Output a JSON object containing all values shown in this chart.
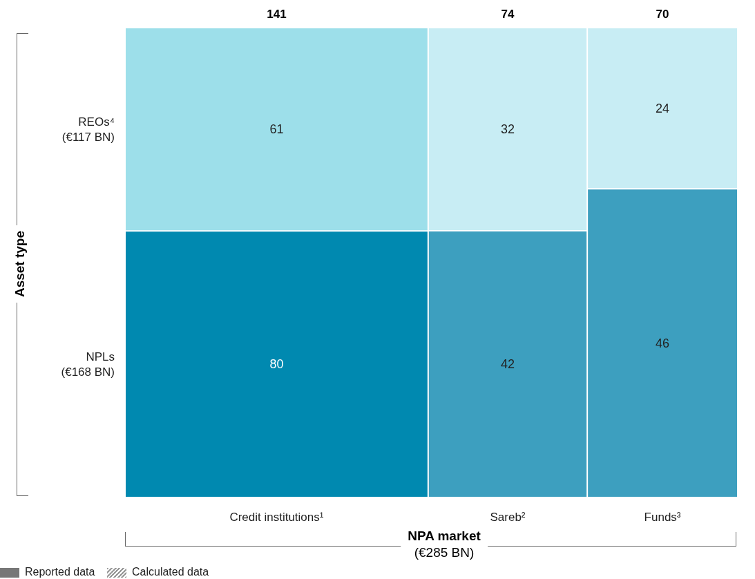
{
  "chart_data": {
    "type": "other",
    "data_labels": true,
    "categories": [
      "Credit institutions¹",
      "Sareb²",
      "Funds³"
    ],
    "series": [
      {
        "name": "NPLs\n(€168 BN)",
        "values": [
          80,
          42,
          46
        ],
        "colors": [
          "#0089b0",
          "#3d9fbf",
          "#3d9fbf"
        ]
      },
      {
        "name": "REOs⁴\n(€117 BN)",
        "values": [
          61,
          32,
          24
        ],
        "colors": [
          "#9ddfea",
          "#c8edf4",
          "#c8edf4"
        ]
      }
    ],
    "totals": [
      "141",
      "74",
      "70"
    ],
    "xlabel": "NPA market\n(€285 BN)",
    "annotations": [
      "Asset type",
      "Reported data",
      "Calculated data"
    ]
  }
}
